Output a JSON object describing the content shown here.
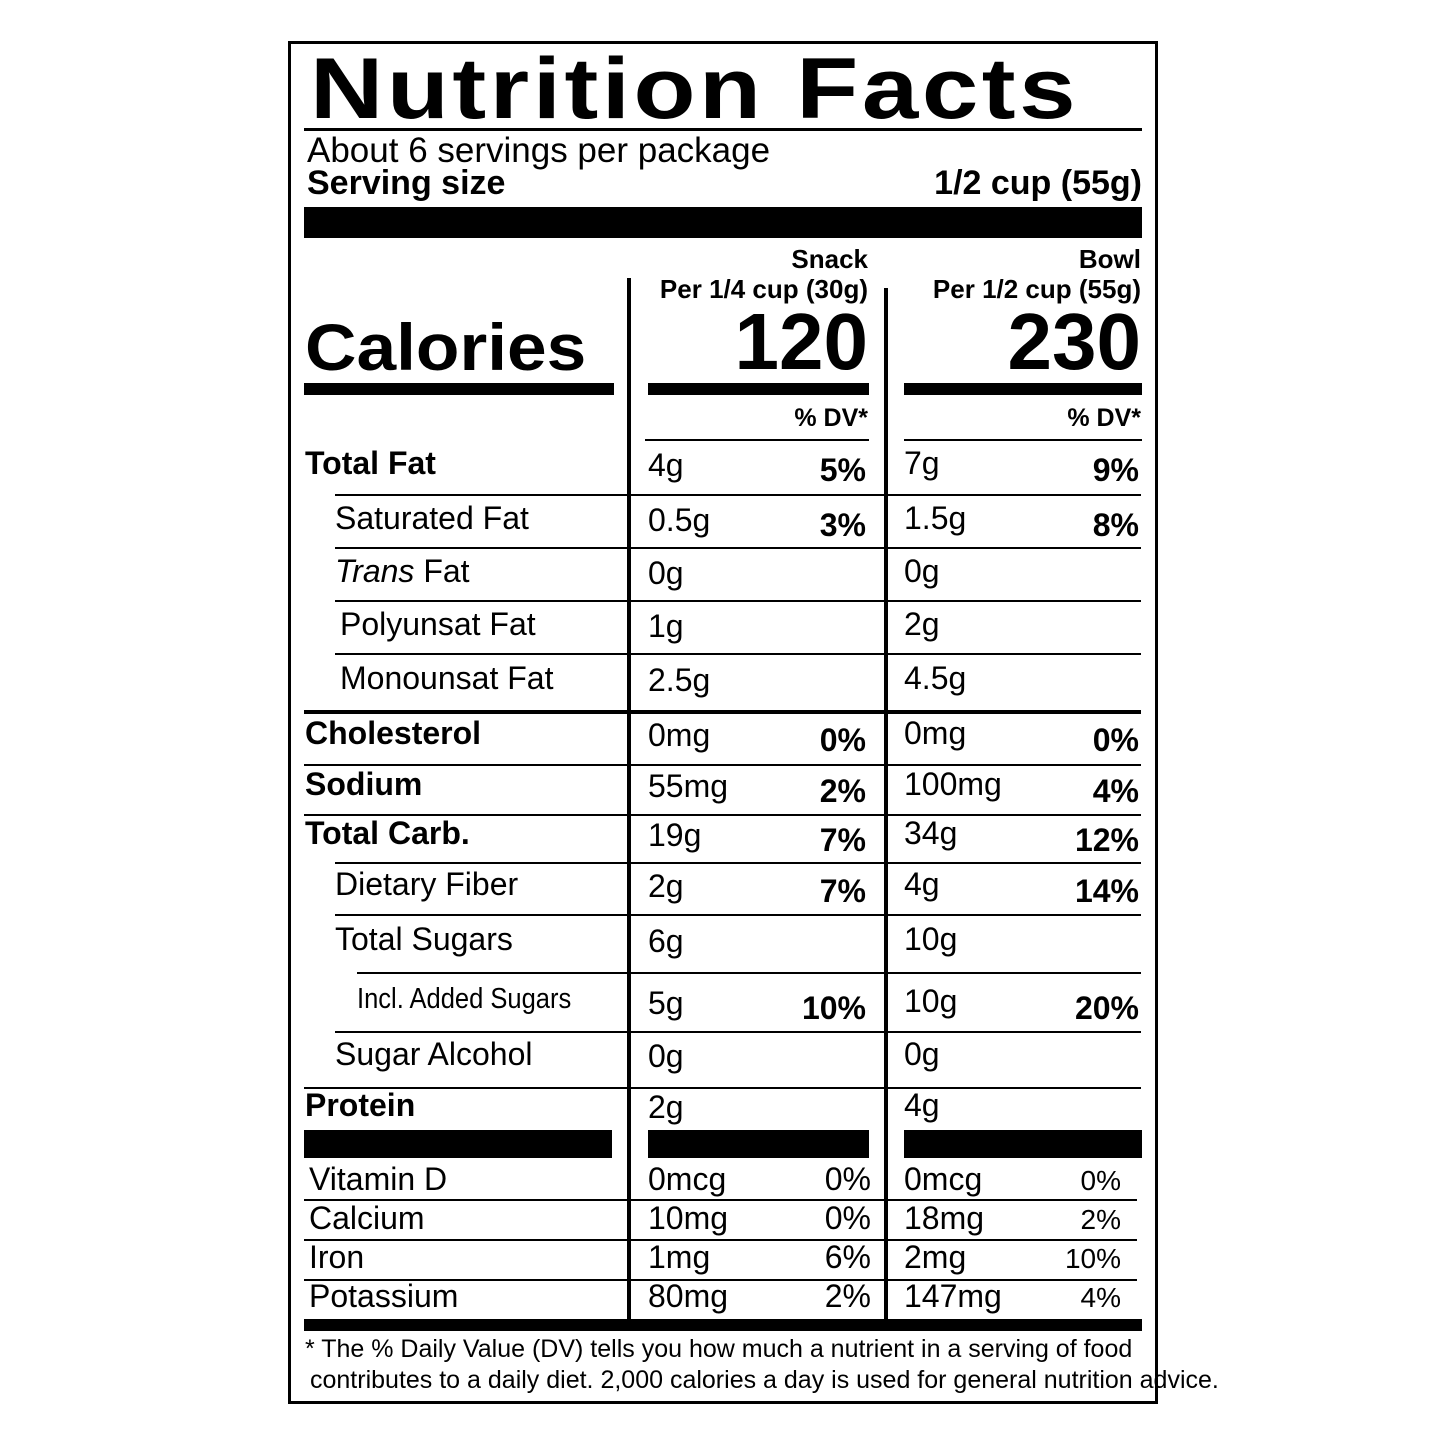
{
  "header": {
    "title": "Nutrition Facts",
    "servings": "About 6 servings per package",
    "serving_size_label": "Serving size",
    "serving_size_value": "1/2 cup (55g)"
  },
  "calories": {
    "label": "Calories",
    "snack": {
      "name": "Snack",
      "per": "Per 1/4 cup (30g)",
      "value": "120",
      "dv_header": "% DV*"
    },
    "bowl": {
      "name": "Bowl",
      "per": "Per 1/2 cup (55g)",
      "value": "230",
      "dv_header": "% DV*"
    }
  },
  "nutrients": [
    {
      "name": "Total Fat",
      "bold": true,
      "indent": 0,
      "snack": "4g",
      "snack_dv": "5%",
      "bowl": "7g",
      "bowl_dv": "9%"
    },
    {
      "name": "Saturated Fat",
      "bold": false,
      "indent": 1,
      "snack": "0.5g",
      "snack_dv": "3%",
      "bowl": "1.5g",
      "bowl_dv": "8%"
    },
    {
      "name": "Trans Fat",
      "italic_prefix": "Trans",
      "bold": false,
      "indent": 1,
      "snack": "0g",
      "snack_dv": "",
      "bowl": "0g",
      "bowl_dv": ""
    },
    {
      "name": "Polyunsat Fat",
      "bold": false,
      "indent": 1,
      "snack": "1g",
      "snack_dv": "",
      "bowl": "2g",
      "bowl_dv": ""
    },
    {
      "name": "Monounsat Fat",
      "bold": false,
      "indent": 1,
      "snack": "2.5g",
      "snack_dv": "",
      "bowl": "4.5g",
      "bowl_dv": ""
    },
    {
      "name": "Cholesterol",
      "bold": true,
      "indent": 0,
      "snack": "0mg",
      "snack_dv": "0%",
      "bowl": "0mg",
      "bowl_dv": "0%"
    },
    {
      "name": "Sodium",
      "bold": true,
      "indent": 0,
      "snack": "55mg",
      "snack_dv": "2%",
      "bowl": "100mg",
      "bowl_dv": "4%"
    },
    {
      "name": "Total Carb.",
      "bold": true,
      "indent": 0,
      "snack": "19g",
      "snack_dv": "7%",
      "bowl": "34g",
      "bowl_dv": "12%"
    },
    {
      "name": "Dietary Fiber",
      "bold": false,
      "indent": 1,
      "snack": "2g",
      "snack_dv": "7%",
      "bowl": "4g",
      "bowl_dv": "14%"
    },
    {
      "name": "Total Sugars",
      "bold": false,
      "indent": 1,
      "snack": "6g",
      "snack_dv": "",
      "bowl": "10g",
      "bowl_dv": ""
    },
    {
      "name": "Incl. Added Sugars",
      "bold": false,
      "indent": 2,
      "snack": "5g",
      "snack_dv": "10%",
      "bowl": "10g",
      "bowl_dv": "20%"
    },
    {
      "name": "Sugar Alcohol",
      "bold": false,
      "indent": 1,
      "snack": "0g",
      "snack_dv": "",
      "bowl": "0g",
      "bowl_dv": ""
    },
    {
      "name": "Protein",
      "bold": true,
      "indent": 0,
      "snack": "2g",
      "snack_dv": "",
      "bowl": "4g",
      "bowl_dv": ""
    }
  ],
  "vitamins": [
    {
      "name": "Vitamin D",
      "snack": "0mcg",
      "snack_dv": "0%",
      "bowl": "0mcg",
      "bowl_dv": "0%"
    },
    {
      "name": "Calcium",
      "snack": "10mg",
      "snack_dv": "0%",
      "bowl": "18mg",
      "bowl_dv": "2%"
    },
    {
      "name": "Iron",
      "snack": "1mg",
      "snack_dv": "6%",
      "bowl": "2mg",
      "bowl_dv": "10%"
    },
    {
      "name": "Potassium",
      "snack": "80mg",
      "snack_dv": "2%",
      "bowl": "147mg",
      "bowl_dv": "4%"
    }
  ],
  "footnote": {
    "line1": "* The % Daily Value (DV) tells you how much a nutrient in a serving of food",
    "line2": "contributes to a daily diet. 2,000 calories a day is used for general nutrition advice."
  }
}
